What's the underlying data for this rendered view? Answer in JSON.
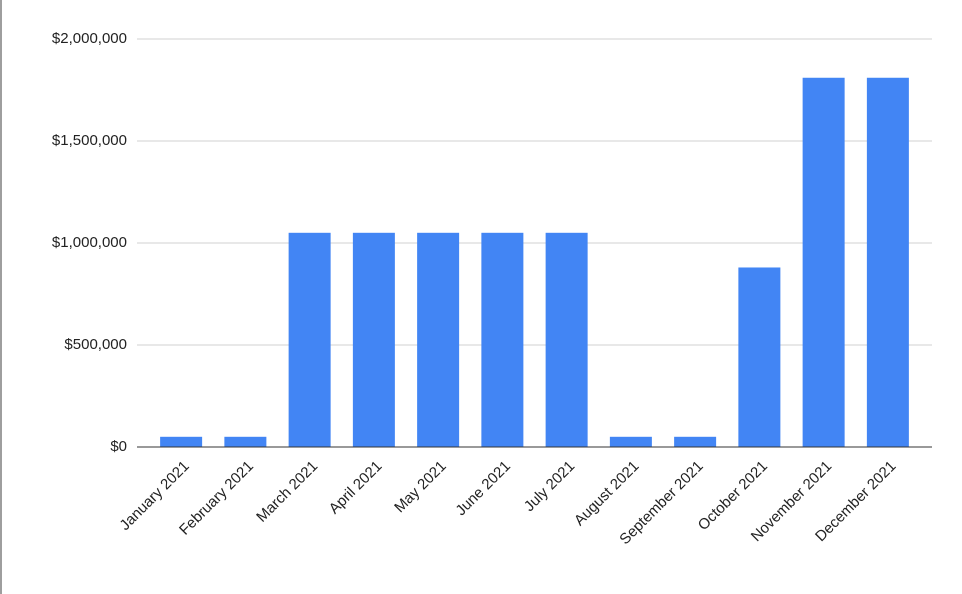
{
  "chart_data": {
    "type": "bar",
    "categories": [
      "January 2021",
      "February 2021",
      "March 2021",
      "April 2021",
      "May 2021",
      "June 2021",
      "July 2021",
      "August 2021",
      "September 2021",
      "October 2021",
      "November 2021",
      "December 2021"
    ],
    "values": [
      50000,
      50000,
      1050000,
      1050000,
      1050000,
      1050000,
      1050000,
      50000,
      50000,
      880000,
      1810000,
      1810000
    ],
    "color": "#4285f4",
    "ylim": [
      0,
      2000000
    ],
    "yticks": [
      {
        "value": 0,
        "label": "$0"
      },
      {
        "value": 500000,
        "label": "$500,000"
      },
      {
        "value": 1000000,
        "label": "$1,000,000"
      },
      {
        "value": 1500000,
        "label": "$1,500,000"
      },
      {
        "value": 2000000,
        "label": "$2,000,000"
      }
    ],
    "grid": true
  }
}
